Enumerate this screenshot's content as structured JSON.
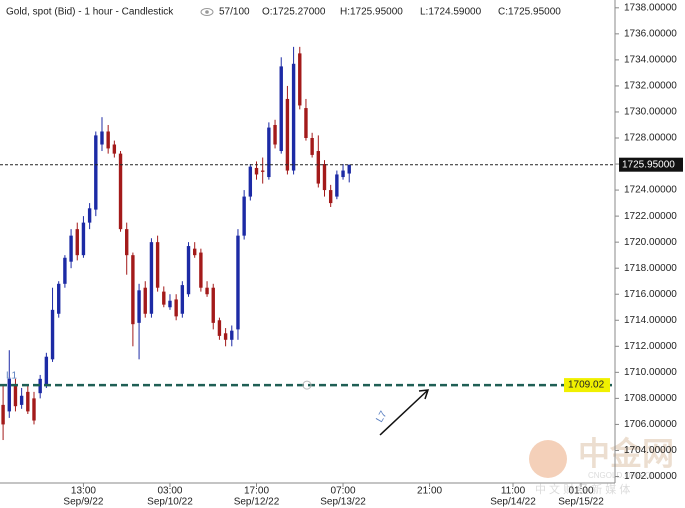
{
  "chart_data": {
    "type": "candlestick",
    "title": "Gold, spot (Bid) - 1 hour - Candlestick",
    "header": {
      "count": "57/100",
      "open": "O:1725.27000",
      "high": "H:1725.95000",
      "low": "L:1724.59000",
      "close": "C:1725.95000"
    },
    "up_color": "#1c2aa5",
    "down_color": "#a31a1a",
    "open": [
      1707.5,
      1707,
      1709,
      1707.5,
      1708.5,
      1708,
      1708.4,
      1709,
      1711,
      1714.5,
      1716.8,
      1718.5,
      1721,
      1719,
      1721.5,
      1722.5,
      1727.5,
      1728.5,
      1727.5,
      1726.8,
      1721,
      1719,
      1713.8,
      1716.5,
      1714.5,
      1720,
      1716.2,
      1715,
      1715.6,
      1714.5,
      1716,
      1719.5,
      1719.2,
      1716.5,
      1716.5,
      1714,
      1713,
      1712.5,
      1713.3,
      1720.5,
      1723.5,
      1725.7,
      1725.5,
      1725,
      1729,
      1727,
      1731,
      1725.5,
      1734.5,
      1730.3,
      1728,
      1727,
      1726,
      1724,
      1723.5,
      1725,
      1725.27
    ],
    "high": [
      1709,
      1711.7,
      1709.5,
      1708.8,
      1709,
      1708.5,
      1709.8,
      1711.5,
      1716.5,
      1717,
      1719,
      1721,
      1721.5,
      1722,
      1723,
      1728.5,
      1729.6,
      1729,
      1727.8,
      1727,
      1721.5,
      1719.2,
      1716.8,
      1717,
      1720.3,
      1720.5,
      1716.6,
      1716,
      1716,
      1717,
      1720,
      1720,
      1719.5,
      1717,
      1716.8,
      1714.2,
      1713.4,
      1713.6,
      1721,
      1724,
      1726,
      1726.2,
      1726.5,
      1729.2,
      1729.4,
      1734.2,
      1732,
      1735,
      1735,
      1731,
      1728.4,
      1728.2,
      1726.3,
      1724.4,
      1725.5,
      1726,
      1725.95
    ],
    "low": [
      1704.8,
      1706.5,
      1707,
      1707.2,
      1706.8,
      1706,
      1708,
      1708.8,
      1710.8,
      1714.2,
      1716.5,
      1718,
      1718.6,
      1718.8,
      1721,
      1722,
      1727,
      1726.8,
      1726.5,
      1720.8,
      1717.5,
      1712,
      1711,
      1714.2,
      1714.2,
      1716.2,
      1715,
      1714.8,
      1714,
      1714.2,
      1715.8,
      1718.8,
      1716.2,
      1715.8,
      1713.3,
      1712.5,
      1712,
      1712,
      1712.5,
      1720.2,
      1723.2,
      1724.8,
      1724.5,
      1724.8,
      1727.2,
      1726.8,
      1725.2,
      1725.2,
      1730.2,
      1727.8,
      1726.5,
      1724.2,
      1723.5,
      1722.7,
      1723.3,
      1724.8,
      1724.59
    ],
    "close": [
      1706,
      1709.5,
      1707.4,
      1708.2,
      1707,
      1706.3,
      1709.5,
      1711.2,
      1714.8,
      1716.8,
      1718.8,
      1720.5,
      1719,
      1721.5,
      1722.6,
      1728.2,
      1728.5,
      1727.2,
      1726.8,
      1721,
      1719,
      1713.7,
      1716.3,
      1714.5,
      1720,
      1716.5,
      1715.2,
      1715.5,
      1714.3,
      1716.7,
      1719.7,
      1719,
      1716.5,
      1716,
      1713.8,
      1712.8,
      1712.5,
      1713.2,
      1720.5,
      1723.5,
      1725.8,
      1725.2,
      1725.4,
      1728.8,
      1727.5,
      1733.5,
      1725.5,
      1733.7,
      1730.5,
      1728,
      1726.7,
      1724.5,
      1724,
      1723,
      1725.2,
      1725.5,
      1725.95
    ],
    "xlim": [
      -0.5,
      99
    ],
    "xticks": [
      {
        "value": 13,
        "label": "13:00",
        "date": "Sep/9/22"
      },
      {
        "value": 27,
        "label": "03:00",
        "date": "Sep/10/22"
      },
      {
        "value": 41,
        "label": "17:00",
        "date": "Sep/12/22"
      },
      {
        "value": 55,
        "label": "07:00",
        "date": "Sep/13/22"
      },
      {
        "value": 69,
        "label": "21:00"
      },
      {
        "value": 82.5,
        "label": "11:00",
        "date": "Sep/14/22"
      },
      {
        "value": 93.5,
        "label": "01:00",
        "date": "Sep/15/22"
      }
    ],
    "ylim": [
      1701.5,
      1738.6
    ],
    "yticks": [
      {
        "value": 1702,
        "label": "1702.00000"
      },
      {
        "value": 1704,
        "label": "1704.00000"
      },
      {
        "value": 1706,
        "label": "1706.00000"
      },
      {
        "value": 1708,
        "label": "1708.00000"
      },
      {
        "value": 1710,
        "label": "1710.00000"
      },
      {
        "value": 1712,
        "label": "1712.00000"
      },
      {
        "value": 1714,
        "label": "1714.00000"
      },
      {
        "value": 1716,
        "label": "1716.00000"
      },
      {
        "value": 1718,
        "label": "1718.00000"
      },
      {
        "value": 1720,
        "label": "1720.00000"
      },
      {
        "value": 1722,
        "label": "1722.00000"
      },
      {
        "value": 1724,
        "label": "1724.00000"
      },
      {
        "value": 1726,
        "label": "1726.00000"
      },
      {
        "value": 1728,
        "label": "1728.00000"
      },
      {
        "value": 1730,
        "label": "1730.00000"
      },
      {
        "value": 1732,
        "label": "1732.00000"
      },
      {
        "value": 1734,
        "label": "1734.00000"
      },
      {
        "value": 1736,
        "label": "1736.00000"
      },
      {
        "value": 1738,
        "label": "1738.00000"
      }
    ],
    "last_price": {
      "value": 1725.95,
      "label": "1725.95000"
    },
    "level": {
      "name": "L1",
      "value": 1709.02,
      "label": "1709.02",
      "color": "#1f5f55"
    },
    "annotation": "L7",
    "watermark": {
      "logo": "中金网",
      "url": "CNGOLD.ORG.CN",
      "slogan": "中 文 财 经 新 媒 体"
    }
  }
}
